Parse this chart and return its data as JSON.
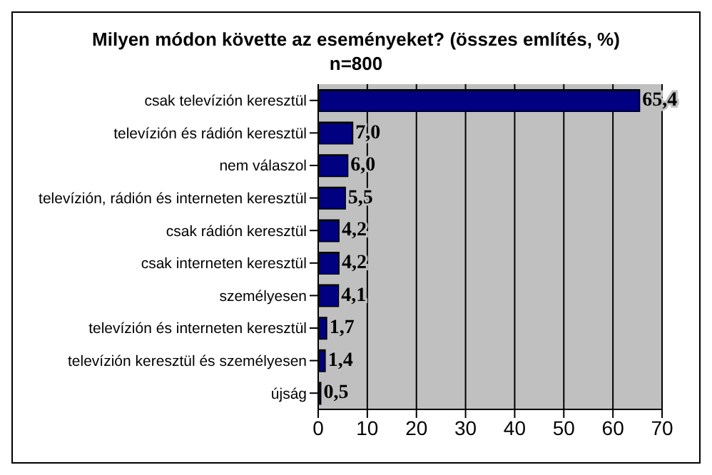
{
  "chart_data": {
    "type": "bar",
    "orientation": "horizontal",
    "title": "Milyen módon követte az eseményeket? (összes említés, %)",
    "subtitle": "n=800",
    "categories": [
      "csak televízión keresztül",
      "televízión és rádión keresztül",
      "nem válaszol",
      "televízión, rádión és interneten keresztül",
      "csak rádión keresztül",
      "csak interneten keresztül",
      "személyesen",
      "televízión és interneten keresztül",
      "televízión keresztül és személyesen",
      "újság"
    ],
    "values": [
      65.4,
      7.0,
      6.0,
      5.5,
      4.2,
      4.2,
      4.1,
      1.7,
      1.4,
      0.5
    ],
    "value_labels": [
      "65,4",
      "7,0",
      "6,0",
      "5,5",
      "4,2",
      "4,2",
      "4,1",
      "1,7",
      "1,4",
      "0,5"
    ],
    "color": "#000080",
    "xlim": [
      0,
      70
    ],
    "xticks": [
      0,
      10,
      20,
      30,
      40,
      50,
      60,
      70
    ],
    "grid": "x"
  }
}
